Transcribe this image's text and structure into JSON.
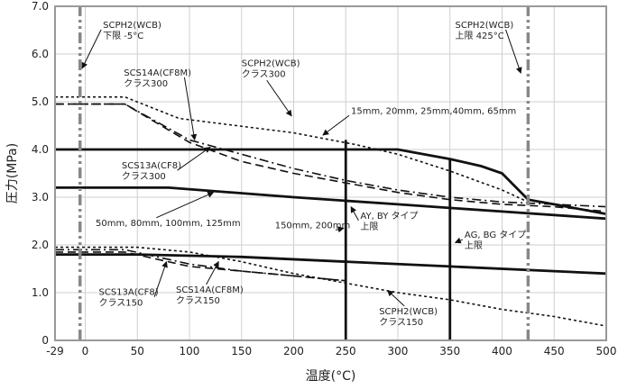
{
  "chart_data": {
    "type": "line",
    "title": "",
    "xlabel": "温度(°C)",
    "ylabel": "圧力(MPa)",
    "xlim": [
      -29,
      500
    ],
    "ylim": [
      0,
      7.0
    ],
    "x_ticks": [
      -29,
      0,
      50,
      100,
      150,
      200,
      250,
      300,
      350,
      400,
      450,
      500
    ],
    "x_tick_labels": [
      "-29",
      "0",
      "50",
      "100",
      "150",
      "200",
      "250",
      "300",
      "350",
      "400",
      "450",
      "500"
    ],
    "y_ticks": [
      0,
      1.0,
      2.0,
      3.0,
      4.0,
      5.0,
      6.0,
      7.0
    ],
    "y_tick_labels": [
      "0",
      "1.0",
      "2.0",
      "3.0",
      "4.0",
      "5.0",
      "6.0",
      "7.0"
    ],
    "grid": true,
    "series": [
      {
        "style": "dotted",
        "points": [
          [
            -29,
            5.1
          ],
          [
            38,
            5.1
          ],
          [
            90,
            4.65
          ],
          [
            200,
            4.35
          ],
          [
            260,
            4.1
          ],
          [
            300,
            3.9
          ],
          [
            350,
            3.55
          ],
          [
            400,
            3.15
          ],
          [
            425,
            2.9
          ]
        ]
      },
      {
        "style": "dashdot",
        "points": [
          [
            -29,
            4.95
          ],
          [
            38,
            4.95
          ],
          [
            100,
            4.2
          ],
          [
            150,
            3.9
          ],
          [
            200,
            3.6
          ],
          [
            250,
            3.35
          ],
          [
            300,
            3.15
          ],
          [
            350,
            3.0
          ],
          [
            400,
            2.9
          ],
          [
            450,
            2.85
          ],
          [
            500,
            2.8
          ]
        ]
      },
      {
        "style": "dashed",
        "points": [
          [
            -29,
            4.95
          ],
          [
            38,
            4.95
          ],
          [
            100,
            4.15
          ],
          [
            150,
            3.75
          ],
          [
            200,
            3.5
          ],
          [
            250,
            3.3
          ],
          [
            300,
            3.1
          ],
          [
            350,
            2.95
          ],
          [
            400,
            2.85
          ],
          [
            450,
            2.8
          ],
          [
            500,
            2.7
          ]
        ]
      },
      {
        "style": "solid",
        "points": [
          [
            -29,
            4.0
          ],
          [
            300,
            4.0
          ],
          [
            350,
            3.8
          ],
          [
            380,
            3.65
          ],
          [
            400,
            3.5
          ],
          [
            425,
            2.95
          ],
          [
            450,
            2.85
          ],
          [
            500,
            2.65
          ]
        ]
      },
      {
        "style": "solid",
        "points": [
          [
            -29,
            3.2
          ],
          [
            80,
            3.2
          ],
          [
            200,
            3.0
          ],
          [
            300,
            2.85
          ],
          [
            400,
            2.7
          ],
          [
            500,
            2.55
          ]
        ]
      },
      {
        "style": "dotted",
        "points": [
          [
            -29,
            1.95
          ],
          [
            50,
            1.95
          ],
          [
            100,
            1.85
          ],
          [
            150,
            1.65
          ],
          [
            200,
            1.4
          ],
          [
            250,
            1.2
          ],
          [
            300,
            1.0
          ],
          [
            350,
            0.85
          ],
          [
            400,
            0.65
          ],
          [
            450,
            0.5
          ],
          [
            500,
            0.3
          ]
        ]
      },
      {
        "style": "dashdot",
        "points": [
          [
            -29,
            1.9
          ],
          [
            38,
            1.9
          ],
          [
            100,
            1.6
          ],
          [
            150,
            1.45
          ],
          [
            200,
            1.35
          ],
          [
            250,
            1.25
          ]
        ]
      },
      {
        "style": "dashed",
        "points": [
          [
            -29,
            1.85
          ],
          [
            38,
            1.85
          ],
          [
            100,
            1.55
          ],
          [
            150,
            1.45
          ],
          [
            200,
            1.35
          ],
          [
            250,
            1.25
          ]
        ]
      },
      {
        "style": "solid",
        "points": [
          [
            -29,
            1.8
          ],
          [
            50,
            1.8
          ],
          [
            150,
            1.75
          ],
          [
            250,
            1.65
          ],
          [
            350,
            1.55
          ],
          [
            500,
            1.4
          ]
        ]
      }
    ],
    "vertical_lines": [
      {
        "style": "solid",
        "x": 250,
        "y_top": 4.2
      },
      {
        "style": "solid",
        "x": 350,
        "y_top": 3.8
      },
      {
        "style": "dashdotdot",
        "x": -5,
        "y_top": 7.0
      },
      {
        "style": "dashdotdot",
        "x": 425,
        "y_top": 7.0
      }
    ],
    "annotations": [
      {
        "lines": [
          "SCPH2(WCB)",
          "下限 -5°C"
        ],
        "x": 17,
        "y": 6.55,
        "ax": -3,
        "ay": 5.7
      },
      {
        "lines": [
          "SCPH2(WCB)",
          "上限 425°C"
        ],
        "x": 355,
        "y": 6.55,
        "ax": 418,
        "ay": 5.6
      },
      {
        "lines": [
          "SCS14A(CF8M)",
          "クラス300"
        ],
        "x": 37,
        "y": 5.55,
        "ax": 105,
        "ay": 4.2
      },
      {
        "lines": [
          "SCPH2(WCB)",
          "クラス300"
        ],
        "x": 150,
        "y": 5.75,
        "ax": 198,
        "ay": 4.7
      },
      {
        "lines": [
          "15mm, 20mm, 25mm,40mm, 65mm"
        ],
        "x": 255,
        "y": 4.75,
        "ax": 228,
        "ay": 4.3
      },
      {
        "lines": [
          "SCS13A(CF8)",
          "クラス300"
        ],
        "x": 35,
        "y": 3.6,
        "ax": 120,
        "ay": 4.05
      },
      {
        "lines": [
          "50mm, 80mm, 100mm, 125mm"
        ],
        "x": 10,
        "y": 2.4,
        "ax": 123,
        "ay": 3.1
      },
      {
        "lines": [
          "150mm, 200mm"
        ],
        "x": 182,
        "y": 2.35,
        "ax": 248,
        "ay": 2.35
      },
      {
        "lines": [
          "AY, BY タイプ",
          "上限"
        ],
        "x": 264,
        "y": 2.55,
        "ax": 255,
        "ay": 2.8
      },
      {
        "lines": [
          "AG, BG タイプ",
          "上限"
        ],
        "x": 364,
        "y": 2.15,
        "ax": 355,
        "ay": 2.05
      },
      {
        "lines": [
          "SCS13A(CF8)",
          "クラス150"
        ],
        "x": 13,
        "y": 0.95,
        "ax": 78,
        "ay": 1.65
      },
      {
        "lines": [
          "SCS14A(CF8M)",
          "クラス150"
        ],
        "x": 87,
        "y": 1.0,
        "ax": 128,
        "ay": 1.65
      },
      {
        "lines": [
          "SCPH2(WCB)",
          "クラス150"
        ],
        "x": 282,
        "y": 0.55,
        "ax": 290,
        "ay": 1.05
      }
    ]
  }
}
